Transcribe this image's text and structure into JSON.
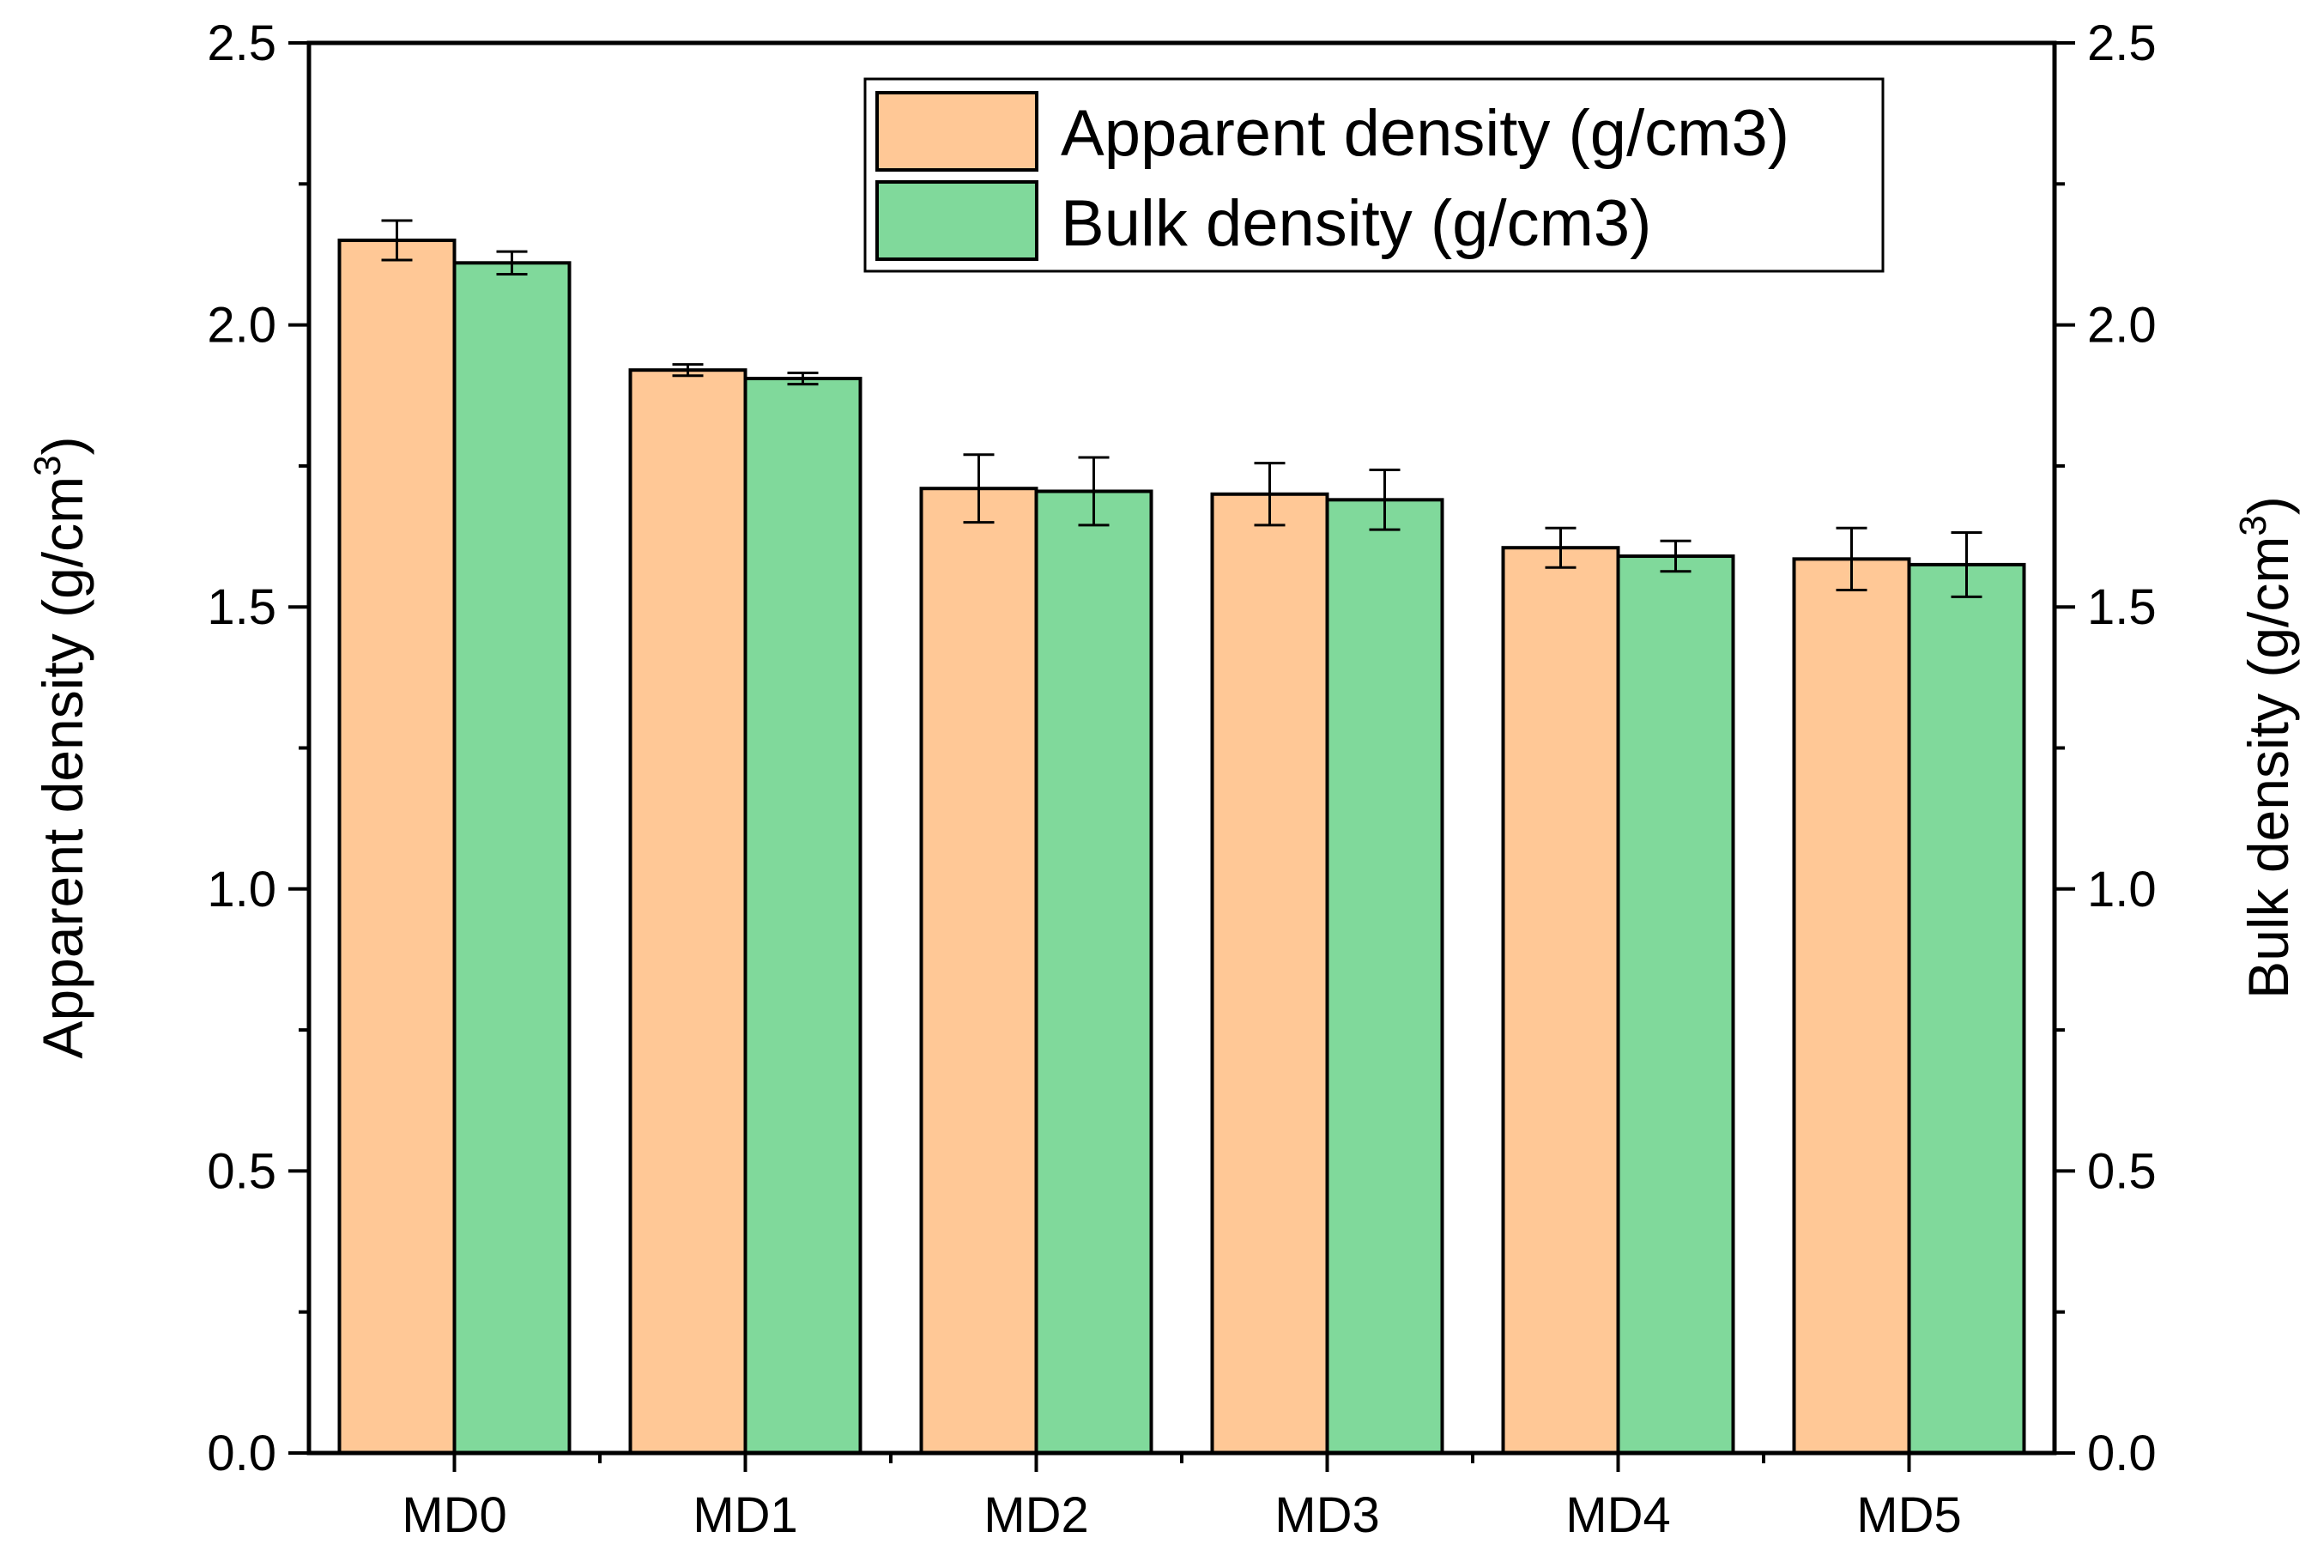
{
  "chart_data": {
    "type": "bar",
    "categories": [
      "MD0",
      "MD1",
      "MD2",
      "MD3",
      "MD4",
      "MD5"
    ],
    "series": [
      {
        "name": "Apparent density (g/cm3)",
        "values": [
          2.15,
          1.92,
          1.71,
          1.7,
          1.605,
          1.585
        ],
        "errors": [
          0.035,
          0.01,
          0.06,
          0.055,
          0.035,
          0.055
        ],
        "color": "#FFC896"
      },
      {
        "name": "Bulk density (g/cm3)",
        "values": [
          2.11,
          1.905,
          1.705,
          1.69,
          1.59,
          1.575
        ],
        "errors": [
          0.02,
          0.01,
          0.06,
          0.053,
          0.027,
          0.057
        ],
        "color": "#80D99B"
      }
    ],
    "ylabel_left": {
      "main": "Apparent density (g/cm",
      "sup": "3",
      "close": ")"
    },
    "ylabel_right": {
      "main": "Bulk density (g/cm",
      "sup": "3",
      "close": ")"
    },
    "ylim": [
      0,
      2.5
    ],
    "yticks": [
      0.0,
      0.5,
      1.0,
      1.5,
      2.0,
      2.5
    ],
    "ytick_labels": [
      "0.0",
      "0.5",
      "1.0",
      "1.5",
      "2.0",
      "2.5"
    ],
    "legend_position": "top-right",
    "grid": false
  }
}
